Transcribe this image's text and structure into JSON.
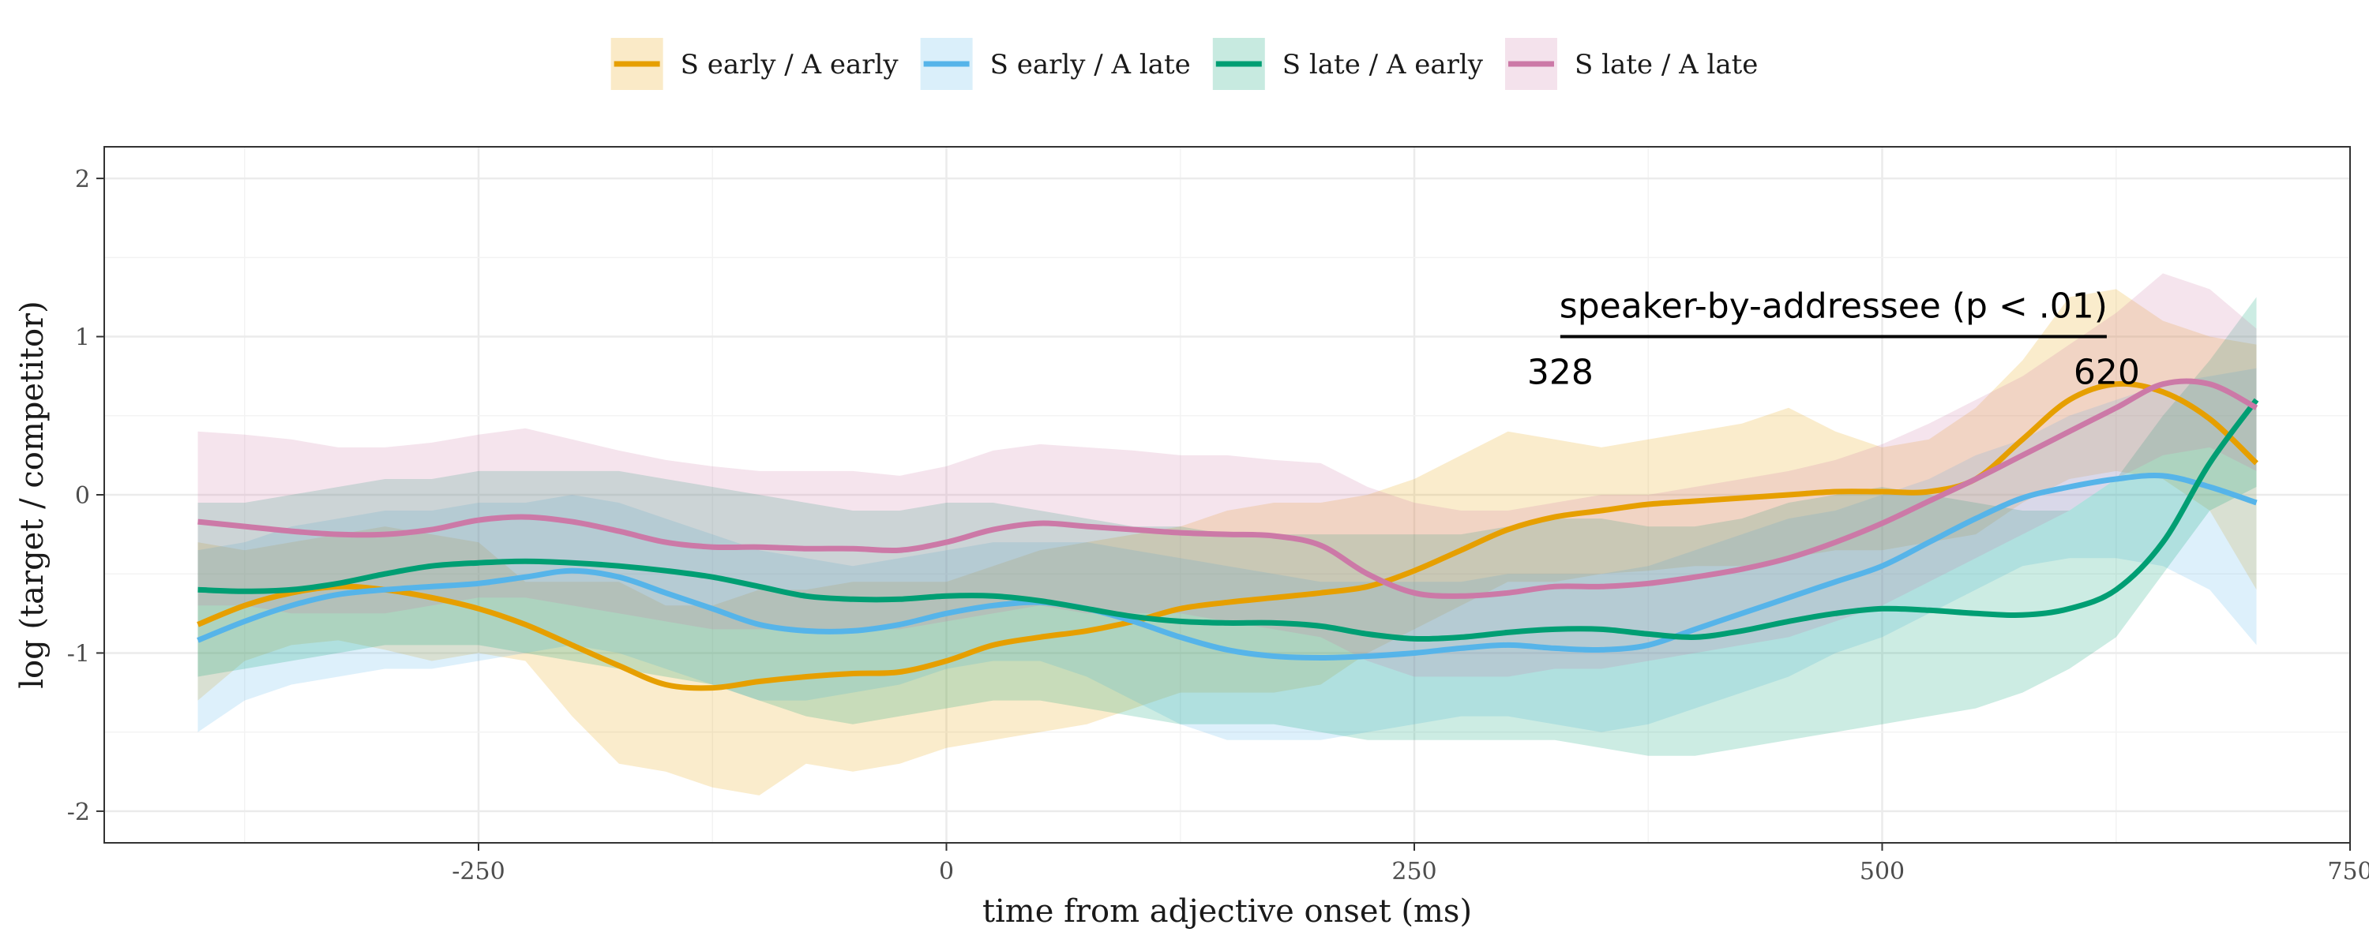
{
  "chart_data": {
    "type": "line",
    "xlabel": "time from adjective onset (ms)",
    "ylabel": "log (target / competitor)",
    "xlim": [
      -450,
      750
    ],
    "ylim": [
      -2.2,
      2.2
    ],
    "x_ticks": [
      -250,
      0,
      250,
      500,
      750
    ],
    "x_tick_labels": [
      "-250",
      "0",
      "250",
      "500",
      "750"
    ],
    "y_ticks": [
      -2,
      -1,
      0,
      1,
      2
    ],
    "y_tick_labels": [
      "-2",
      "-1",
      "0",
      "1",
      "2"
    ],
    "grid": true,
    "legend_position": "top",
    "x": [
      -400,
      -375,
      -350,
      -325,
      -300,
      -275,
      -250,
      -225,
      -200,
      -175,
      -150,
      -125,
      -100,
      -75,
      -50,
      -25,
      0,
      25,
      50,
      75,
      100,
      125,
      150,
      175,
      200,
      225,
      250,
      275,
      300,
      325,
      350,
      375,
      400,
      425,
      450,
      475,
      500,
      525,
      550,
      575,
      600,
      625,
      650,
      675,
      700
    ],
    "series": [
      {
        "name": "S early / A early",
        "color": "#E69F00",
        "values": [
          -0.82,
          -0.7,
          -0.62,
          -0.58,
          -0.6,
          -0.65,
          -0.72,
          -0.82,
          -0.95,
          -1.08,
          -1.2,
          -1.22,
          -1.18,
          -1.15,
          -1.13,
          -1.12,
          -1.05,
          -0.95,
          -0.9,
          -0.86,
          -0.8,
          -0.72,
          -0.68,
          -0.65,
          -0.62,
          -0.58,
          -0.48,
          -0.35,
          -0.22,
          -0.14,
          -0.1,
          -0.06,
          -0.04,
          -0.02,
          0.0,
          0.02,
          0.02,
          0.02,
          0.1,
          0.35,
          0.6,
          0.7,
          0.65,
          0.48,
          0.2
        ],
        "lower": [
          -1.3,
          -1.05,
          -0.95,
          -0.92,
          -0.98,
          -1.05,
          -1.0,
          -1.05,
          -1.4,
          -1.7,
          -1.75,
          -1.85,
          -1.9,
          -1.7,
          -1.75,
          -1.7,
          -1.6,
          -1.55,
          -1.5,
          -1.45,
          -1.35,
          -1.25,
          -1.25,
          -1.25,
          -1.2,
          -1.0,
          -0.85,
          -0.7,
          -0.55,
          -0.55,
          -0.5,
          -0.48,
          -0.45,
          -0.45,
          -0.4,
          -0.35,
          -0.35,
          -0.3,
          -0.25,
          -0.05,
          0.1,
          0.15,
          0.1,
          -0.1,
          -0.6
        ],
        "upper": [
          -0.3,
          -0.35,
          -0.3,
          -0.25,
          -0.2,
          -0.25,
          -0.3,
          -0.55,
          -0.55,
          -0.55,
          -0.7,
          -0.7,
          -0.6,
          -0.6,
          -0.55,
          -0.55,
          -0.55,
          -0.45,
          -0.35,
          -0.3,
          -0.25,
          -0.2,
          -0.1,
          -0.05,
          -0.05,
          0.0,
          0.1,
          0.25,
          0.4,
          0.35,
          0.3,
          0.35,
          0.4,
          0.45,
          0.55,
          0.4,
          0.3,
          0.35,
          0.55,
          0.85,
          1.25,
          1.3,
          1.1,
          1.0,
          0.95
        ]
      },
      {
        "name": "S early / A late",
        "color": "#56B4E9",
        "values": [
          -0.92,
          -0.8,
          -0.7,
          -0.63,
          -0.6,
          -0.58,
          -0.56,
          -0.52,
          -0.48,
          -0.52,
          -0.62,
          -0.72,
          -0.82,
          -0.86,
          -0.86,
          -0.82,
          -0.75,
          -0.7,
          -0.68,
          -0.72,
          -0.8,
          -0.9,
          -0.98,
          -1.02,
          -1.03,
          -1.02,
          -1.0,
          -0.97,
          -0.95,
          -0.97,
          -0.98,
          -0.95,
          -0.85,
          -0.75,
          -0.65,
          -0.55,
          -0.45,
          -0.3,
          -0.15,
          -0.02,
          0.05,
          0.1,
          0.12,
          0.05,
          -0.05
        ],
        "lower": [
          -1.5,
          -1.3,
          -1.2,
          -1.15,
          -1.1,
          -1.1,
          -1.05,
          -1.0,
          -0.95,
          -1.0,
          -1.1,
          -1.2,
          -1.3,
          -1.3,
          -1.25,
          -1.2,
          -1.1,
          -1.05,
          -1.05,
          -1.15,
          -1.3,
          -1.45,
          -1.55,
          -1.55,
          -1.55,
          -1.5,
          -1.45,
          -1.4,
          -1.4,
          -1.45,
          -1.5,
          -1.45,
          -1.35,
          -1.25,
          -1.15,
          -1.0,
          -0.9,
          -0.75,
          -0.6,
          -0.45,
          -0.4,
          -0.4,
          -0.45,
          -0.6,
          -0.95
        ],
        "upper": [
          -0.35,
          -0.3,
          -0.2,
          -0.15,
          -0.1,
          -0.1,
          -0.05,
          -0.05,
          0.0,
          -0.05,
          -0.15,
          -0.25,
          -0.35,
          -0.4,
          -0.45,
          -0.4,
          -0.35,
          -0.3,
          -0.3,
          -0.3,
          -0.35,
          -0.4,
          -0.45,
          -0.5,
          -0.55,
          -0.55,
          -0.55,
          -0.55,
          -0.5,
          -0.5,
          -0.5,
          -0.45,
          -0.35,
          -0.25,
          -0.15,
          -0.1,
          0.0,
          0.1,
          0.25,
          0.35,
          0.5,
          0.6,
          0.7,
          0.75,
          0.8
        ]
      },
      {
        "name": "S late / A early",
        "color": "#009E73",
        "values": [
          -0.6,
          -0.61,
          -0.6,
          -0.56,
          -0.5,
          -0.45,
          -0.43,
          -0.42,
          -0.43,
          -0.45,
          -0.48,
          -0.52,
          -0.58,
          -0.64,
          -0.66,
          -0.66,
          -0.64,
          -0.64,
          -0.67,
          -0.72,
          -0.77,
          -0.8,
          -0.81,
          -0.81,
          -0.83,
          -0.88,
          -0.91,
          -0.9,
          -0.87,
          -0.85,
          -0.85,
          -0.88,
          -0.9,
          -0.86,
          -0.8,
          -0.75,
          -0.72,
          -0.73,
          -0.75,
          -0.76,
          -0.72,
          -0.6,
          -0.3,
          0.2,
          0.6
        ],
        "lower": [
          -1.15,
          -1.1,
          -1.05,
          -1.0,
          -0.95,
          -0.95,
          -0.95,
          -1.0,
          -1.05,
          -1.1,
          -1.15,
          -1.2,
          -1.3,
          -1.4,
          -1.45,
          -1.4,
          -1.35,
          -1.3,
          -1.3,
          -1.35,
          -1.4,
          -1.45,
          -1.45,
          -1.45,
          -1.5,
          -1.55,
          -1.55,
          -1.55,
          -1.55,
          -1.55,
          -1.6,
          -1.65,
          -1.65,
          -1.6,
          -1.55,
          -1.5,
          -1.45,
          -1.4,
          -1.35,
          -1.25,
          -1.1,
          -0.9,
          -0.5,
          -0.1,
          0.05
        ],
        "upper": [
          -0.05,
          -0.05,
          0.0,
          0.05,
          0.1,
          0.1,
          0.15,
          0.15,
          0.15,
          0.15,
          0.1,
          0.05,
          0.0,
          -0.05,
          -0.1,
          -0.1,
          -0.05,
          -0.05,
          -0.1,
          -0.15,
          -0.2,
          -0.2,
          -0.25,
          -0.25,
          -0.25,
          -0.25,
          -0.25,
          -0.25,
          -0.2,
          -0.15,
          -0.15,
          -0.2,
          -0.2,
          -0.15,
          -0.05,
          0.0,
          0.05,
          0.0,
          -0.05,
          -0.1,
          -0.1,
          0.1,
          0.5,
          0.85,
          1.25
        ]
      },
      {
        "name": "S late / A late",
        "color": "#CC79A7",
        "values": [
          -0.17,
          -0.2,
          -0.23,
          -0.25,
          -0.25,
          -0.22,
          -0.16,
          -0.14,
          -0.17,
          -0.23,
          -0.3,
          -0.33,
          -0.33,
          -0.34,
          -0.34,
          -0.35,
          -0.3,
          -0.22,
          -0.18,
          -0.2,
          -0.22,
          -0.24,
          -0.25,
          -0.26,
          -0.32,
          -0.5,
          -0.62,
          -0.64,
          -0.62,
          -0.58,
          -0.58,
          -0.56,
          -0.52,
          -0.47,
          -0.4,
          -0.3,
          -0.18,
          -0.04,
          0.1,
          0.25,
          0.4,
          0.55,
          0.7,
          0.7,
          0.55
        ],
        "lower": [
          -0.7,
          -0.7,
          -0.75,
          -0.75,
          -0.75,
          -0.7,
          -0.65,
          -0.65,
          -0.7,
          -0.75,
          -0.8,
          -0.85,
          -0.85,
          -0.85,
          -0.85,
          -0.85,
          -0.8,
          -0.75,
          -0.7,
          -0.75,
          -0.75,
          -0.75,
          -0.8,
          -0.85,
          -0.9,
          -1.05,
          -1.15,
          -1.15,
          -1.15,
          -1.1,
          -1.1,
          -1.05,
          -1.0,
          -0.95,
          -0.9,
          -0.8,
          -0.7,
          -0.55,
          -0.4,
          -0.25,
          -0.1,
          0.1,
          0.25,
          0.3,
          0.15
        ],
        "upper": [
          0.4,
          0.38,
          0.35,
          0.3,
          0.3,
          0.33,
          0.38,
          0.42,
          0.35,
          0.28,
          0.22,
          0.18,
          0.15,
          0.15,
          0.15,
          0.12,
          0.18,
          0.28,
          0.32,
          0.3,
          0.28,
          0.25,
          0.25,
          0.22,
          0.2,
          0.05,
          -0.05,
          -0.1,
          -0.1,
          -0.05,
          0.0,
          0.0,
          0.05,
          0.1,
          0.15,
          0.22,
          0.32,
          0.45,
          0.6,
          0.75,
          0.95,
          1.15,
          1.4,
          1.3,
          1.05
        ]
      }
    ],
    "annotation": {
      "label": "speaker-by-addressee (p < .01)",
      "segment_x": [
        328,
        620
      ],
      "segment_y": 1.0,
      "start_label": "328",
      "end_label": "620"
    }
  }
}
